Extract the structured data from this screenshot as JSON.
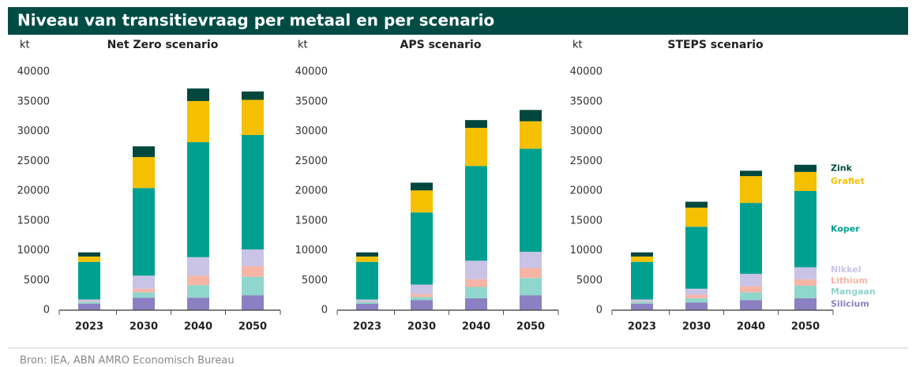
{
  "title": "Niveau van transitievraag per metaal en per scenario",
  "source": "Bron: IEA, ABN AMRO Economisch Bureau",
  "chart_data": [
    {
      "type": "bar",
      "stacked": true,
      "title": "Net Zero scenario",
      "ylabel": "kt",
      "categories": [
        "2023",
        "2030",
        "2040",
        "2050"
      ],
      "ylim": [
        0,
        40000
      ],
      "yticks": [
        0,
        5000,
        10000,
        15000,
        20000,
        25000,
        30000,
        35000,
        40000
      ],
      "series": [
        {
          "name": "Silicium",
          "color": "#8b80c2",
          "values": [
            1100,
            2100,
            2100,
            2500
          ]
        },
        {
          "name": "Mangaan",
          "color": "#8fd6cc",
          "values": [
            300,
            900,
            2100,
            3100
          ]
        },
        {
          "name": "Lithium",
          "color": "#f7b5a6",
          "values": [
            100,
            600,
            1600,
            1800
          ]
        },
        {
          "name": "Nikkel",
          "color": "#c9c3e6",
          "values": [
            300,
            2200,
            3100,
            2800
          ]
        },
        {
          "name": "Koper",
          "color": "#00a091",
          "values": [
            6300,
            14700,
            19300,
            19200
          ]
        },
        {
          "name": "Grafiet",
          "color": "#f5c000",
          "values": [
            900,
            5200,
            6900,
            5900
          ]
        },
        {
          "name": "Zink",
          "color": "#00473d",
          "values": [
            700,
            1800,
            2100,
            1400
          ]
        }
      ]
    },
    {
      "type": "bar",
      "stacked": true,
      "title": "APS scenario",
      "ylabel": "kt",
      "categories": [
        "2023",
        "2030",
        "2040",
        "2050"
      ],
      "ylim": [
        0,
        40000
      ],
      "yticks": [
        0,
        5000,
        10000,
        15000,
        20000,
        25000,
        30000,
        35000,
        40000
      ],
      "series": [
        {
          "name": "Silicium",
          "color": "#8b80c2",
          "values": [
            1100,
            1700,
            2000,
            2500
          ]
        },
        {
          "name": "Mangaan",
          "color": "#8fd6cc",
          "values": [
            300,
            500,
            1900,
            2900
          ]
        },
        {
          "name": "Lithium",
          "color": "#f7b5a6",
          "values": [
            100,
            500,
            1300,
            1700
          ]
        },
        {
          "name": "Nikkel",
          "color": "#c9c3e6",
          "values": [
            300,
            1600,
            3100,
            2700
          ]
        },
        {
          "name": "Koper",
          "color": "#00a091",
          "values": [
            6300,
            12100,
            15900,
            17300
          ]
        },
        {
          "name": "Grafiet",
          "color": "#f5c000",
          "values": [
            900,
            3700,
            6400,
            4600
          ]
        },
        {
          "name": "Zink",
          "color": "#00473d",
          "values": [
            700,
            1300,
            1300,
            1900
          ]
        }
      ]
    },
    {
      "type": "bar",
      "stacked": true,
      "title": "STEPS scenario",
      "ylabel": "kt",
      "legend": "right",
      "categories": [
        "2023",
        "2030",
        "2040",
        "2050"
      ],
      "ylim": [
        0,
        40000
      ],
      "yticks": [
        0,
        5000,
        10000,
        15000,
        20000,
        25000,
        30000,
        35000,
        40000
      ],
      "series": [
        {
          "name": "Silicium",
          "color": "#8b80c2",
          "values": [
            1100,
            1300,
            1700,
            2000
          ]
        },
        {
          "name": "Mangaan",
          "color": "#8fd6cc",
          "values": [
            300,
            700,
            1300,
            2100
          ]
        },
        {
          "name": "Lithium",
          "color": "#f7b5a6",
          "values": [
            100,
            600,
            1000,
            1100
          ]
        },
        {
          "name": "Nikkel",
          "color": "#c9c3e6",
          "values": [
            300,
            1000,
            2100,
            2000
          ]
        },
        {
          "name": "Koper",
          "color": "#00a091",
          "values": [
            6300,
            10400,
            11900,
            12800
          ]
        },
        {
          "name": "Grafiet",
          "color": "#f5c000",
          "values": [
            900,
            3200,
            4500,
            3200
          ]
        },
        {
          "name": "Zink",
          "color": "#00473d",
          "values": [
            700,
            1000,
            900,
            1200
          ]
        }
      ]
    }
  ]
}
